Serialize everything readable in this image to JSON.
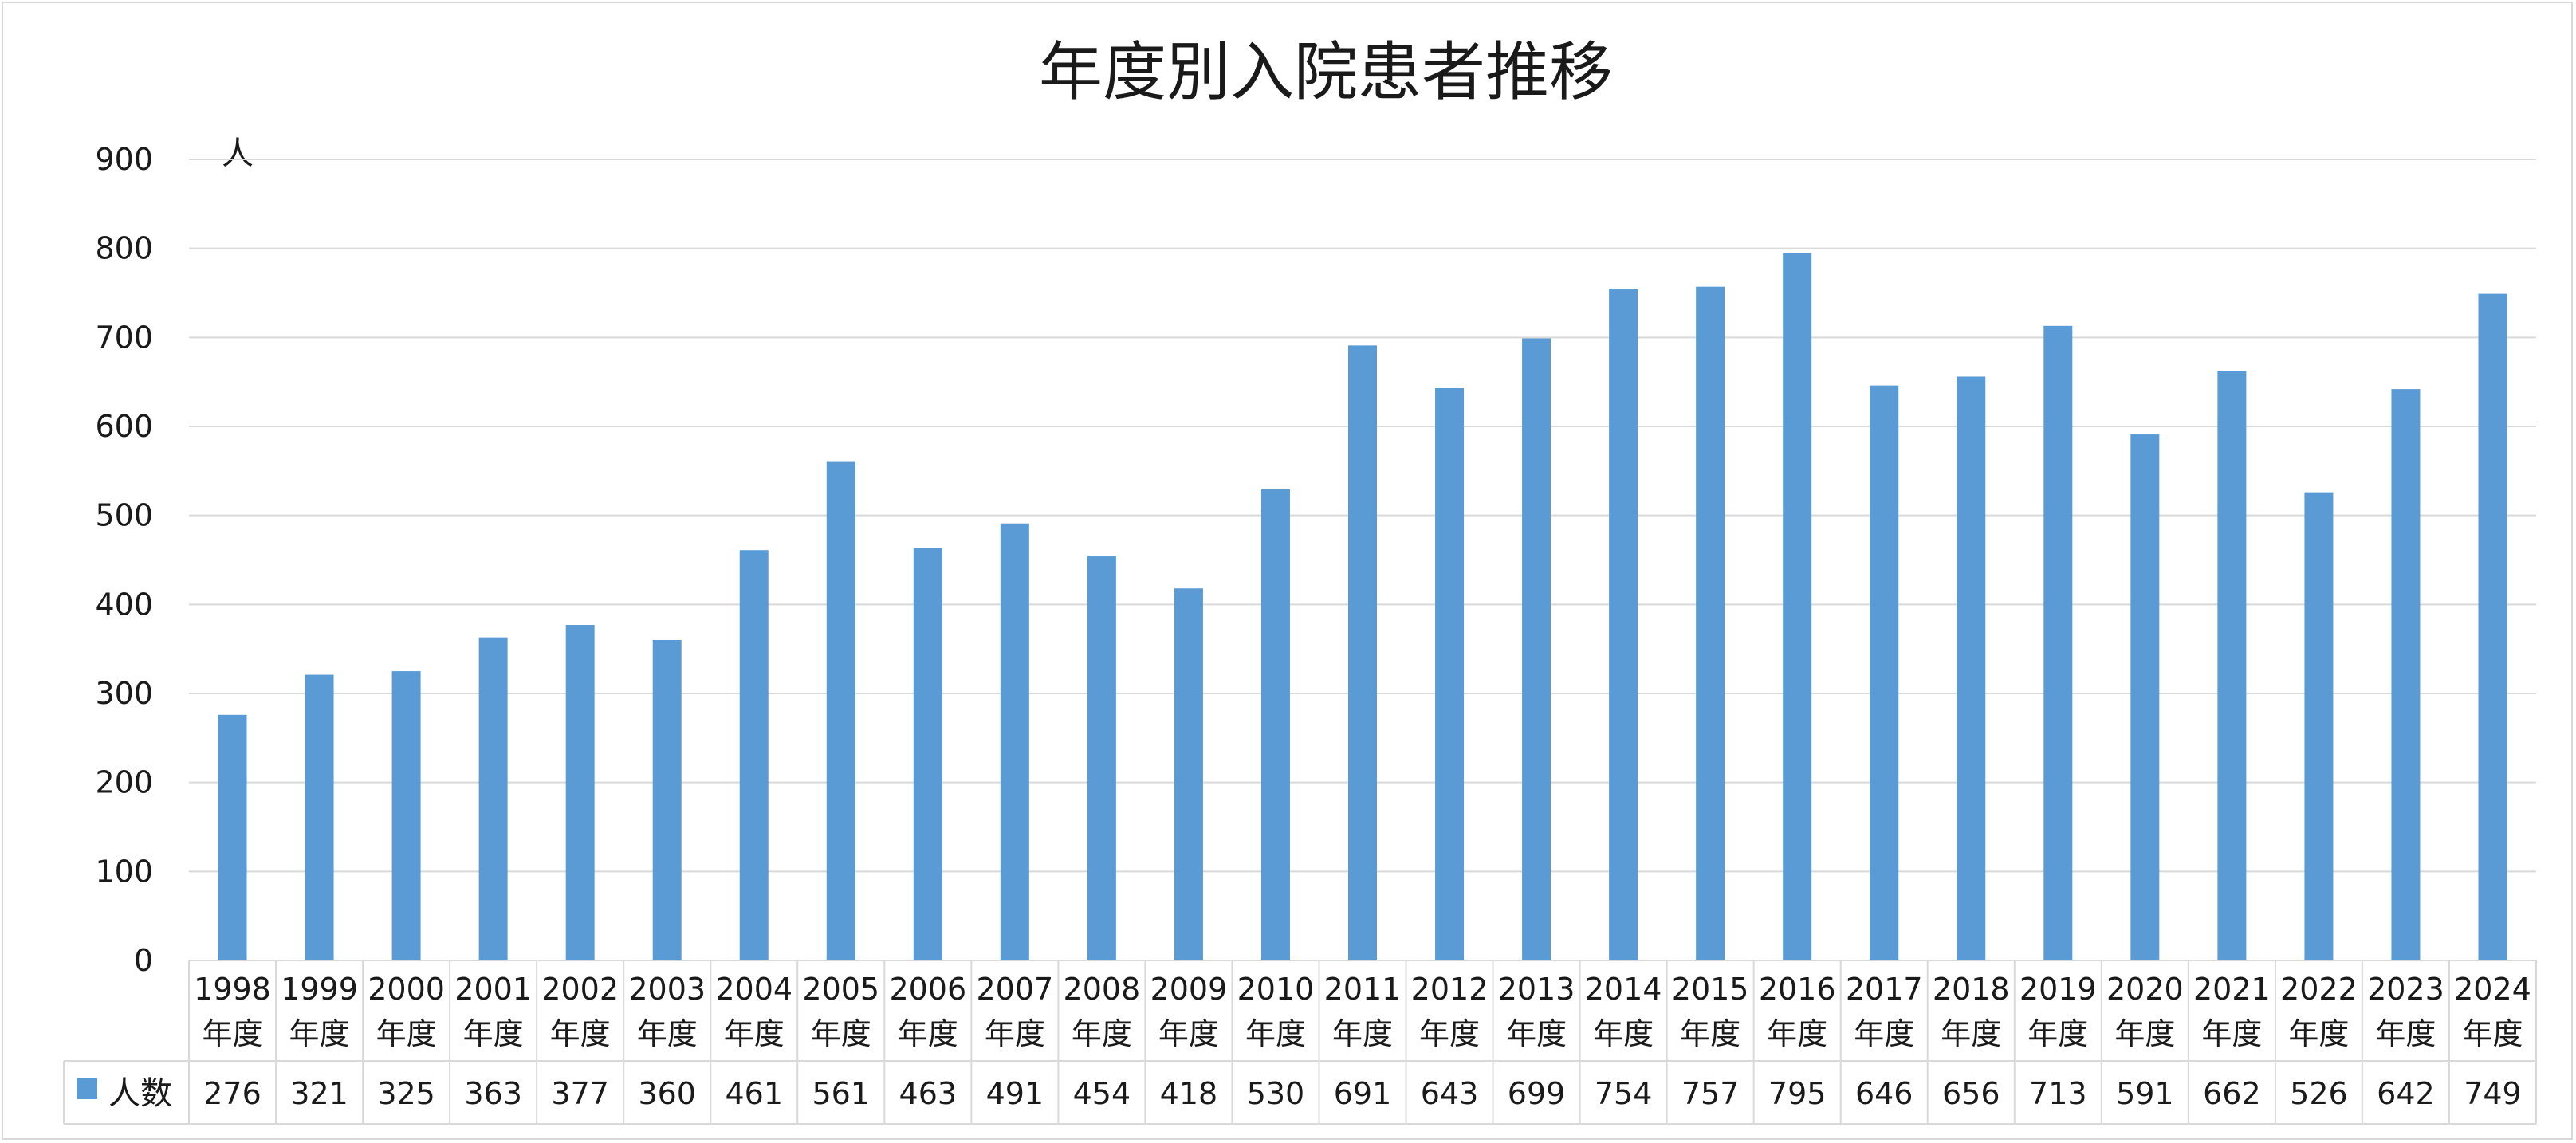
{
  "chart_data": {
    "type": "bar",
    "title": "年度別入院患者推移",
    "ylabel": "人",
    "xlabel": "",
    "ylim": [
      0,
      900
    ],
    "yticks": [
      "0",
      "100",
      "200",
      "300",
      "400",
      "500",
      "600",
      "700",
      "800",
      "900"
    ],
    "grid": true,
    "categories": [
      "1998年度",
      "1999年度",
      "2000年度",
      "2001年度",
      "2002年度",
      "2003年度",
      "2004年度",
      "2005年度",
      "2006年度",
      "2007年度",
      "2008年度",
      "2009年度",
      "2010年度",
      "2011年度",
      "2012年度",
      "2013年度",
      "2014年度",
      "2015年度",
      "2016年度",
      "2017年度",
      "2018年度",
      "2019年度",
      "2020年度",
      "2021年度",
      "2022年度",
      "2023年度",
      "2024年度"
    ],
    "category_years": [
      "1998",
      "1999",
      "2000",
      "2001",
      "2002",
      "2003",
      "2004",
      "2005",
      "2006",
      "2007",
      "2008",
      "2009",
      "2010",
      "2011",
      "2012",
      "2013",
      "2014",
      "2015",
      "2016",
      "2017",
      "2018",
      "2019",
      "2020",
      "2021",
      "2022",
      "2023",
      "2024"
    ],
    "category_suffix": "年度",
    "series": [
      {
        "name": "人数",
        "color": "#5b9bd5",
        "values": [
          276,
          321,
          325,
          363,
          377,
          360,
          461,
          561,
          463,
          491,
          454,
          418,
          530,
          691,
          643,
          699,
          754,
          757,
          795,
          646,
          656,
          713,
          591,
          662,
          526,
          642,
          749
        ]
      }
    ],
    "data_table": true,
    "legend": "data-table-left"
  }
}
